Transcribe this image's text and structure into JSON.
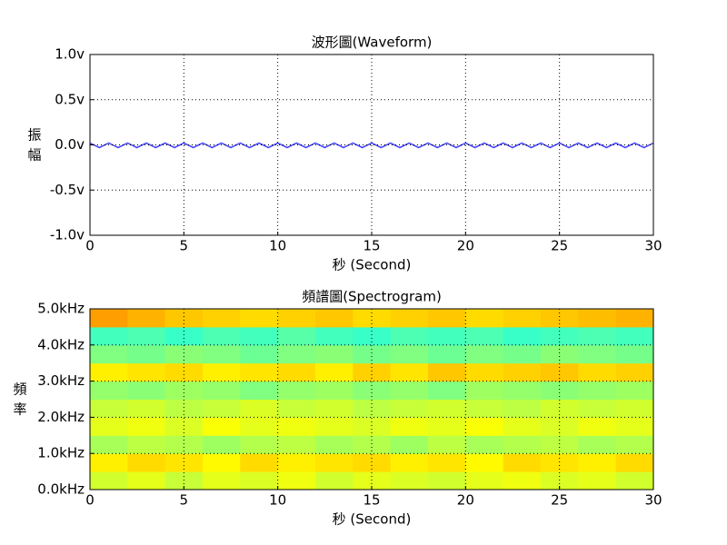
{
  "chart_data": [
    {
      "type": "line",
      "title": "波形圖(Waveform)",
      "xlabel": "秒 (Second)",
      "ylabel": "振幅",
      "color": "#4444ff",
      "grid": true,
      "x": [
        0,
        0.5,
        1,
        1.5,
        2,
        2.5,
        3,
        3.5,
        4,
        4.5,
        5,
        5.5,
        6,
        6.5,
        7,
        7.5,
        8,
        8.5,
        9,
        9.5,
        10,
        10.5,
        11,
        11.5,
        12,
        12.5,
        13,
        13.5,
        14,
        14.5,
        15,
        15.5,
        16,
        16.5,
        17,
        17.5,
        18,
        18.5,
        19,
        19.5,
        20,
        20.5,
        21,
        21.5,
        22,
        22.5,
        23,
        23.5,
        24,
        24.5,
        25,
        25.5,
        26,
        26.5,
        27,
        27.5,
        28,
        28.5,
        29,
        29.5,
        30
      ],
      "values": [
        0.02,
        -0.03,
        0.02,
        -0.03,
        0.02,
        -0.03,
        0.02,
        -0.03,
        0.02,
        -0.03,
        0.02,
        -0.03,
        0.02,
        -0.03,
        0.02,
        -0.03,
        0.02,
        -0.03,
        0.02,
        -0.03,
        0.02,
        -0.03,
        0.02,
        -0.03,
        0.02,
        -0.03,
        0.02,
        -0.03,
        0.02,
        -0.03,
        0.02,
        -0.03,
        0.02,
        -0.03,
        0.02,
        -0.03,
        0.02,
        -0.03,
        0.02,
        -0.03,
        0.02,
        -0.03,
        0.02,
        -0.03,
        0.02,
        -0.03,
        0.02,
        -0.03,
        0.02,
        -0.03,
        0.02,
        -0.03,
        0.02,
        -0.03,
        0.02,
        -0.03,
        0.02,
        -0.03,
        0.02,
        -0.03,
        0.02
      ],
      "xlim": [
        0,
        30
      ],
      "xticks": [
        0,
        5,
        10,
        15,
        20,
        25,
        30
      ],
      "ylim": [
        -1,
        1
      ],
      "yticks": [
        {
          "value": -1,
          "label": "-1.0v"
        },
        {
          "value": -0.5,
          "label": "-0.5v"
        },
        {
          "value": 0,
          "label": "0.0v"
        },
        {
          "value": 0.5,
          "label": "0.5v"
        },
        {
          "value": 1,
          "label": "1.0v"
        }
      ]
    },
    {
      "type": "heatmap",
      "title": "頻譜圖(Spectrogram)",
      "xlabel": "秒 (Second)",
      "ylabel": "頻率",
      "colormap": "jet",
      "grid": true,
      "xbins": [
        0,
        2,
        4,
        6,
        8,
        10,
        12,
        14,
        16,
        18,
        20,
        22,
        24,
        26,
        28,
        30
      ],
      "ybins": [
        0,
        500,
        1000,
        1500,
        2000,
        2500,
        3000,
        3500,
        4000,
        4500,
        5000
      ],
      "z": [
        [
          0.58,
          0.6,
          0.57,
          0.6,
          0.59,
          0.61,
          0.58,
          0.6,
          0.59,
          0.58,
          0.6,
          0.61,
          0.59,
          0.6,
          0.58
        ],
        [
          0.64,
          0.66,
          0.65,
          0.63,
          0.66,
          0.64,
          0.65,
          0.66,
          0.64,
          0.65,
          0.63,
          0.66,
          0.65,
          0.64,
          0.66
        ],
        [
          0.54,
          0.56,
          0.55,
          0.53,
          0.55,
          0.56,
          0.54,
          0.55,
          0.53,
          0.56,
          0.54,
          0.55,
          0.56,
          0.54,
          0.55
        ],
        [
          0.6,
          0.61,
          0.59,
          0.62,
          0.6,
          0.61,
          0.6,
          0.59,
          0.61,
          0.6,
          0.62,
          0.6,
          0.59,
          0.61,
          0.6
        ],
        [
          0.57,
          0.58,
          0.56,
          0.57,
          0.59,
          0.57,
          0.58,
          0.56,
          0.57,
          0.58,
          0.57,
          0.56,
          0.58,
          0.57,
          0.58
        ],
        [
          0.52,
          0.51,
          0.53,
          0.52,
          0.5,
          0.52,
          0.53,
          0.51,
          0.52,
          0.5,
          0.53,
          0.52,
          0.51,
          0.52,
          0.53
        ],
        [
          0.64,
          0.65,
          0.66,
          0.64,
          0.65,
          0.66,
          0.64,
          0.67,
          0.65,
          0.68,
          0.66,
          0.67,
          0.68,
          0.66,
          0.67
        ],
        [
          0.5,
          0.49,
          0.51,
          0.5,
          0.48,
          0.5,
          0.51,
          0.49,
          0.5,
          0.48,
          0.5,
          0.49,
          0.51,
          0.5,
          0.49
        ],
        [
          0.44,
          0.45,
          0.43,
          0.45,
          0.44,
          0.46,
          0.44,
          0.43,
          0.45,
          0.44,
          0.45,
          0.43,
          0.44,
          0.45,
          0.44
        ],
        [
          0.72,
          0.7,
          0.68,
          0.67,
          0.66,
          0.67,
          0.68,
          0.66,
          0.67,
          0.68,
          0.66,
          0.67,
          0.68,
          0.69,
          0.7
        ]
      ],
      "xlim": [
        0,
        30
      ],
      "xticks": [
        0,
        5,
        10,
        15,
        20,
        25,
        30
      ],
      "ylim": [
        0,
        5000
      ],
      "yticks": [
        {
          "value": 0,
          "label": "0.0kHz"
        },
        {
          "value": 1000,
          "label": "1.0kHz"
        },
        {
          "value": 2000,
          "label": "2.0kHz"
        },
        {
          "value": 3000,
          "label": "3.0kHz"
        },
        {
          "value": 4000,
          "label": "4.0kHz"
        },
        {
          "value": 5000,
          "label": "5.0kHz"
        }
      ]
    }
  ]
}
